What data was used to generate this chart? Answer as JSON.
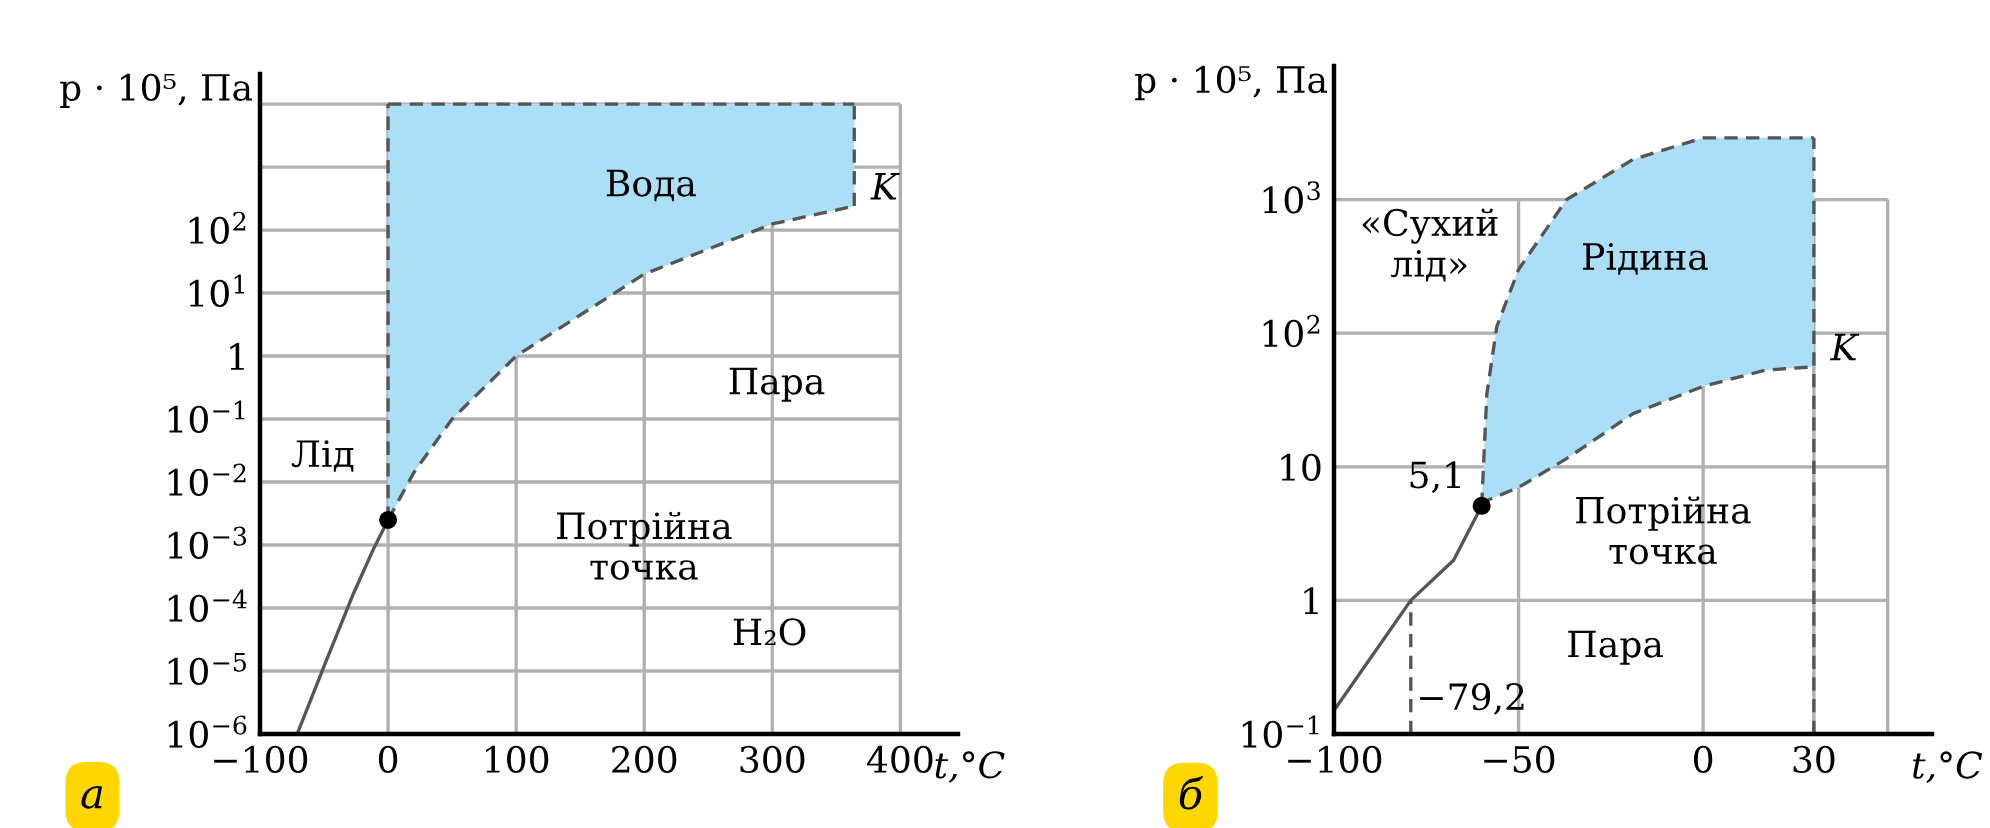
{
  "chart_data": [
    {
      "type": "line",
      "title": "а",
      "xlabel": "t,°C",
      "ylabel": "p · 10⁵, Па",
      "log": "y",
      "grid": true,
      "xlim": [
        -100,
        445
      ],
      "ylim": [
        1e-06,
        30000
      ],
      "xticks": [
        {
          "value": -100,
          "label": "−100"
        },
        0,
        100,
        200,
        300,
        400
      ],
      "yticks": [
        {
          "value": 1e-06,
          "label": "10$^{−6}$"
        },
        {
          "value": 1e-05,
          "label": "10$^{−5}$"
        },
        {
          "value": 0.0001,
          "label": "10$^{−4}$"
        },
        {
          "value": 0.001,
          "label": "10$^{−3}$"
        },
        {
          "value": 0.01,
          "label": "10$^{−2}$"
        },
        {
          "value": 0.1,
          "label": "10$^{−1}$"
        },
        1,
        {
          "value": 10,
          "label": "10$^{1}$"
        },
        {
          "value": 100,
          "label": "10$^{2}$"
        },
        {
          "value": 1000,
          "label": null
        },
        {
          "value": 10000,
          "label": null
        }
      ],
      "series": [
        {
          "type": "area",
          "color": "#abdff7",
          "line_style": "dashed",
          "x": [
            0,
            20,
            50,
            100,
            200,
            300,
            364
          ],
          "values": [
            10000,
            10000,
            10000,
            10000,
            10000,
            10000,
            10000
          ]
        },
        {
          "color": "#555555",
          "line_style": "dashed",
          "x": [
            0,
            20,
            50,
            100,
            200,
            300,
            364
          ],
          "values": [
            0.0025,
            0.014,
            0.1,
            1,
            20,
            125,
            240
          ]
        },
        {
          "color": "#555555",
          "line_style": "dashed",
          "x": [
            0,
            0
          ],
          "values": [
            0.0025,
            10000
          ]
        },
        {
          "color": "#555555",
          "line_style": "dashed",
          "x": [
            364,
            364
          ],
          "values": [
            240,
            10000
          ]
        },
        {
          "color": "#555555",
          "line_style": "solid",
          "x": [
            -71,
            -48,
            -27,
            -11,
            0
          ],
          "values": [
            1e-06,
            1.5e-05,
            0.00017,
            0.0009,
            0.0025
          ]
        },
        {
          "type": "scatter",
          "color": "#000000",
          "marker": "circle",
          "x": [
            0
          ],
          "values": [
            0.0025
          ]
        }
      ],
      "annotations": [
        "Вода",
        {
          "text": "K",
          "x": 364,
          "y": 240
        },
        "Пара",
        "Лід",
        "Потрійна\nточка",
        "H₂O"
      ]
    },
    {
      "type": "line",
      "title": "б",
      "xlabel": "t,°C",
      "ylabel": "p · 10⁵, Па",
      "log": "y",
      "grid": true,
      "xlim": [
        -100,
        62
      ],
      "ylim": [
        0.1,
        10000
      ],
      "xticks": [
        {
          "value": -100,
          "label": "−100"
        },
        {
          "value": -50,
          "label": "−50"
        },
        0,
        30,
        {
          "value": 50,
          "label": null
        }
      ],
      "yticks": [
        {
          "value": 0.1,
          "label": "10$^{−1}$"
        },
        1,
        10,
        {
          "value": 100,
          "label": "10$^{2}$"
        },
        {
          "value": 1000,
          "label": "10$^{3}$"
        }
      ],
      "series": [
        {
          "type": "area",
          "color": "#abdff7",
          "line_style": "dashed",
          "x": [
            -60,
            -58.6,
            -55.9,
            -50,
            -37,
            -19,
            0,
            17,
            30
          ],
          "values": [
            5.1,
            35,
            112,
            300,
            1000,
            2000,
            2900,
            2900,
            2900
          ]
        },
        {
          "color": "#555555",
          "line_style": "dashed",
          "x": [
            -60,
            -58.6,
            -55.9,
            -50,
            -37,
            -19,
            0,
            17,
            30
          ],
          "values": [
            5.1,
            5.6,
            6,
            7,
            11.5,
            25,
            40,
            53,
            56
          ]
        },
        {
          "color": "#555555",
          "line_style": "solid",
          "x": [
            -100,
            -79.2,
            -67.6,
            -60
          ],
          "values": [
            0.15,
            1,
            2,
            5.1
          ]
        },
        {
          "color": "#555555",
          "line_style": "dashed",
          "x": [
            -79.2,
            -79.2
          ],
          "values": [
            0.1,
            1
          ]
        },
        {
          "color": "#555555",
          "line_style": "dashed",
          "x": [
            30,
            30
          ],
          "values": [
            0.1,
            2900
          ]
        },
        {
          "type": "scatter",
          "color": "#000000",
          "marker": "circle",
          "x": [
            -60
          ],
          "values": [
            5.1
          ]
        }
      ],
      "annotations": [
        "«Сухий\nлід»",
        "Рідина",
        {
          "text": "K",
          "x": 30,
          "y": 56
        },
        {
          "text": "5,1",
          "x": -60,
          "y": 5.1
        },
        "Потрійна\nточка",
        "Пара",
        {
          "text": "−79,2",
          "x": -79.2,
          "y": 0.18
        }
      ]
    }
  ]
}
